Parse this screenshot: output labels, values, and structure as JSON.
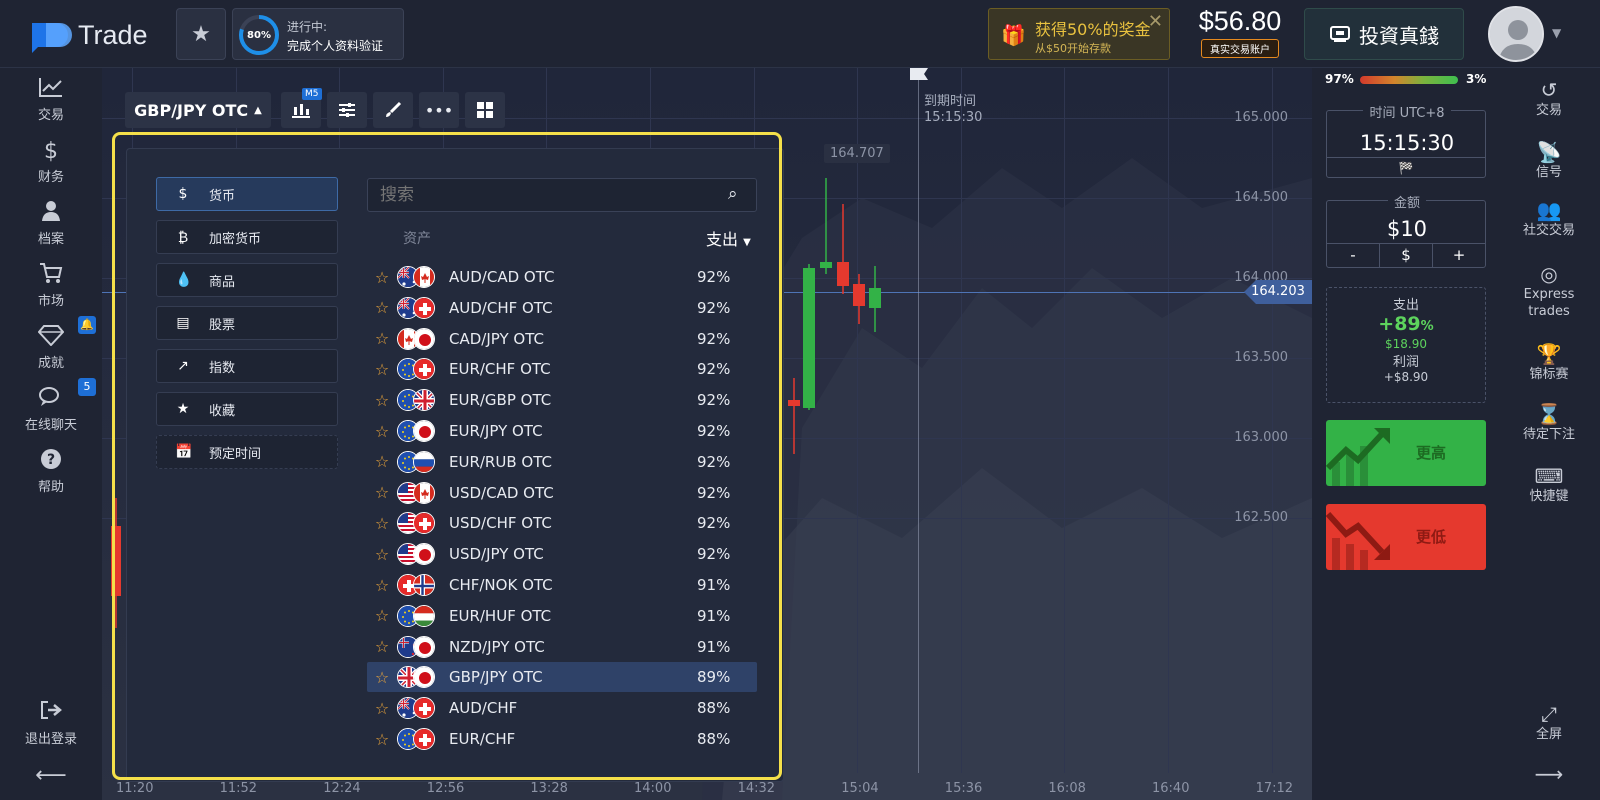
{
  "header": {
    "logo_text": "Trade",
    "progress": {
      "percent_label": "80%",
      "percent_value": 0.8,
      "status": "进行中:",
      "task": "完成个人资料验证"
    },
    "bonus": {
      "title": "获得50%的奖金",
      "subtitle": "从$50开始存款"
    },
    "balance": {
      "amount": "$56.80",
      "account_type": "真实交易账户"
    },
    "invest_button": "投資真錢",
    "icons": {
      "favorites": "star-icon",
      "bonus": "gift-icon",
      "close": "close-icon",
      "invest": "invest-icon",
      "avatar": "user-avatar"
    }
  },
  "left_nav": {
    "items": [
      {
        "label": "交易",
        "icon": "chart-line-icon"
      },
      {
        "label": "财务",
        "icon": "dollar-icon"
      },
      {
        "label": "档案",
        "icon": "user-icon"
      },
      {
        "label": "市场",
        "icon": "cart-icon"
      },
      {
        "label": "成就",
        "icon": "diamond-icon",
        "badge": "🔔"
      },
      {
        "label": "在线聊天",
        "icon": "chat-icon",
        "badge": "5"
      },
      {
        "label": "帮助",
        "icon": "help-icon"
      }
    ],
    "logout": "退出登录",
    "collapse_icon": "arrow-left-icon"
  },
  "toolbar": {
    "pair": "GBP/JPY OTC",
    "timeframe_badge": "M5",
    "tools": [
      "chart-type-icon",
      "settings-icon",
      "draw-icon",
      "more-icon",
      "grid-layout-icon"
    ]
  },
  "chart": {
    "price_ticks": [
      "165.000",
      "164.500",
      "164.000",
      "163.500",
      "163.000",
      "162.500"
    ],
    "time_ticks": [
      "11:20",
      "11:52",
      "12:24",
      "12:56",
      "13:28",
      "14:00",
      "14:32",
      "15:04",
      "15:36",
      "16:08",
      "16:40",
      "17:12"
    ],
    "current_price": "164.203",
    "max_label": "164.707",
    "expiry_title": "到期时间",
    "expiry_time": "15:15:30",
    "colors": {
      "up": "#33b247",
      "down": "#e5392e"
    }
  },
  "asset_panel": {
    "categories": [
      {
        "label": "货币",
        "icon": "dollar-icon",
        "active": true
      },
      {
        "label": "加密货币",
        "icon": "bitcoin-icon",
        "active": false
      },
      {
        "label": "商品",
        "icon": "drop-icon",
        "active": false
      },
      {
        "label": "股票",
        "icon": "document-icon",
        "active": false
      },
      {
        "label": "指数",
        "icon": "trend-icon",
        "active": false
      },
      {
        "label": "收藏",
        "icon": "star-icon",
        "active": false
      },
      {
        "label": "预定时间",
        "icon": "calendar-icon",
        "active": false
      }
    ],
    "search_placeholder": "搜索",
    "column_asset": "资产",
    "column_payout": "支出",
    "assets": [
      {
        "name": "AUD/CAD OTC",
        "payout": "92%",
        "flags": [
          "au",
          "ca"
        ]
      },
      {
        "name": "AUD/CHF OTC",
        "payout": "92%",
        "flags": [
          "au",
          "ch"
        ]
      },
      {
        "name": "CAD/JPY OTC",
        "payout": "92%",
        "flags": [
          "ca",
          "jp"
        ]
      },
      {
        "name": "EUR/CHF OTC",
        "payout": "92%",
        "flags": [
          "eu",
          "ch"
        ]
      },
      {
        "name": "EUR/GBP OTC",
        "payout": "92%",
        "flags": [
          "eu",
          "gb"
        ]
      },
      {
        "name": "EUR/JPY OTC",
        "payout": "92%",
        "flags": [
          "eu",
          "jp"
        ]
      },
      {
        "name": "EUR/RUB OTC",
        "payout": "92%",
        "flags": [
          "eu",
          "ru"
        ]
      },
      {
        "name": "USD/CAD OTC",
        "payout": "92%",
        "flags": [
          "us",
          "ca"
        ]
      },
      {
        "name": "USD/CHF OTC",
        "payout": "92%",
        "flags": [
          "us",
          "ch"
        ]
      },
      {
        "name": "USD/JPY OTC",
        "payout": "92%",
        "flags": [
          "us",
          "jp"
        ]
      },
      {
        "name": "CHF/NOK OTC",
        "payout": "91%",
        "flags": [
          "ch",
          "no"
        ]
      },
      {
        "name": "EUR/HUF OTC",
        "payout": "91%",
        "flags": [
          "eu",
          "hu"
        ]
      },
      {
        "name": "NZD/JPY OTC",
        "payout": "91%",
        "flags": [
          "nz",
          "jp"
        ]
      },
      {
        "name": "GBP/JPY OTC",
        "payout": "89%",
        "flags": [
          "gb",
          "jp"
        ],
        "selected": true
      },
      {
        "name": "AUD/CHF",
        "payout": "88%",
        "flags": [
          "au",
          "ch"
        ]
      },
      {
        "name": "EUR/CHF",
        "payout": "88%",
        "flags": [
          "eu",
          "ch"
        ]
      }
    ]
  },
  "trade_panel": {
    "sentiment_left": "97%",
    "sentiment_right": "3%",
    "sentiment_value": 0.97,
    "time_title": "时间 UTC+8",
    "time_value": "15:15:30",
    "amount_title": "金额",
    "amount_value": "$10",
    "amount_buttons": [
      "-",
      "$",
      "+"
    ],
    "payout_title": "支出",
    "payout_pct": "+89",
    "payout_pct_unit": "%",
    "payout_amount": "$18.90",
    "profit_title": "利润",
    "profit_value": "+$8.90",
    "higher_label": "更高",
    "lower_label": "更低"
  },
  "right_nav": {
    "items": [
      {
        "label": "交易",
        "icon": "history-icon"
      },
      {
        "label": "信号",
        "icon": "signal-icon"
      },
      {
        "label": "社交交易",
        "icon": "users-icon"
      },
      {
        "label": "Express trades",
        "icon": "target-icon"
      },
      {
        "label": "锦标赛",
        "icon": "trophy-icon"
      },
      {
        "label": "待定下注",
        "icon": "hourglass-icon"
      },
      {
        "label": "快捷键",
        "icon": "keyboard-icon"
      }
    ],
    "fullscreen": "全屏",
    "expand_icon": "arrow-right-icon"
  }
}
